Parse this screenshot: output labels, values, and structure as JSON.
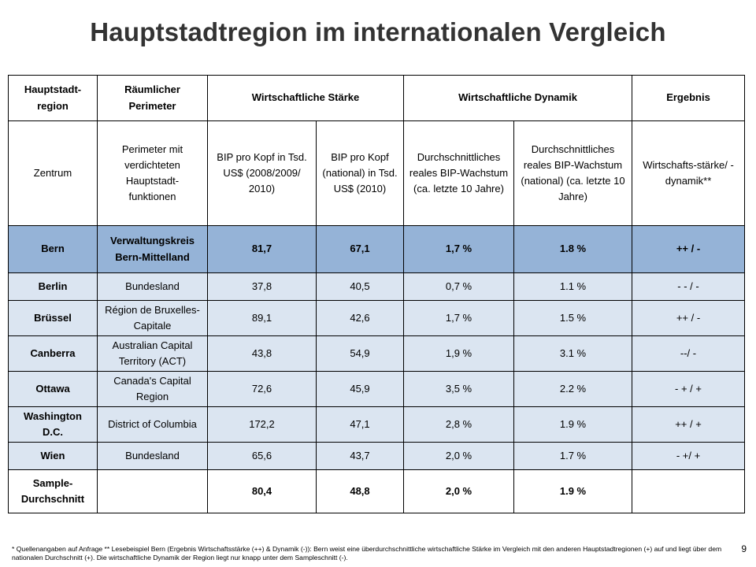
{
  "title": "Hauptstadtregion im internationalen Vergleich",
  "headers": {
    "region": "Hauptstadt-region",
    "perimeter": "Räumlicher Perimeter",
    "staerke": "Wirtschaftliche  Stärke",
    "dynamik": "Wirtschaftliche  Dynamik",
    "ergebnis": "Ergebnis"
  },
  "subheaders": {
    "zentrum": "Zentrum",
    "perimeter": "Perimeter mit verdichteten Hauptstadt-funktionen",
    "bip_kopf": "BIP pro Kopf in Tsd. US$ (2008/2009/ 2010)",
    "bip_national": "BIP pro Kopf (national) in Tsd. US$ (2010)",
    "wachstum": "Durchschnittliches reales BIP-Wachstum (ca. letzte 10 Jahre)",
    "wachstum_national": "Durchschnittliches reales BIP-Wachstum (national) (ca. letzte 10 Jahre)",
    "ergebnis": "Wirtschafts-stärke/ -dynamik**"
  },
  "rows": [
    {
      "region": "Bern",
      "perimeter": "Verwaltungskreis Bern-Mittelland",
      "bip": "81,7",
      "bip_nat": "67,1",
      "wachstum": "1,7 %",
      "wachstum_nat": "1.8 %",
      "ergebnis": "++ / -"
    },
    {
      "region": "Berlin",
      "perimeter": "Bundesland",
      "bip": "37,8",
      "bip_nat": "40,5",
      "wachstum": "0,7 %",
      "wachstum_nat": "1.1 %",
      "ergebnis": "- - / -"
    },
    {
      "region": "Brüssel",
      "perimeter": "Région de Bruxelles-Capitale",
      "bip": "89,1",
      "bip_nat": "42,6",
      "wachstum": "1,7 %",
      "wachstum_nat": "1.5 %",
      "ergebnis": "++ / -"
    },
    {
      "region": "Canberra",
      "perimeter": "Australian Capital Territory (ACT)",
      "bip": "43,8",
      "bip_nat": "54,9",
      "wachstum": "1,9 %",
      "wachstum_nat": "3.1 %",
      "ergebnis": "--/ -"
    },
    {
      "region": "Ottawa",
      "perimeter": "Canada's Capital Region",
      "bip": "72,6",
      "bip_nat": "45,9",
      "wachstum": "3,5 %",
      "wachstum_nat": "2.2 %",
      "ergebnis": "- + / +"
    },
    {
      "region": "Washington D.C.",
      "perimeter": "District of Columbia",
      "bip": "172,2",
      "bip_nat": "47,1",
      "wachstum": "2,8 %",
      "wachstum_nat": "1.9 %",
      "ergebnis": "++ / +"
    },
    {
      "region": "Wien",
      "perimeter": "Bundesland",
      "bip": "65,6",
      "bip_nat": "43,7",
      "wachstum": "2,0 %",
      "wachstum_nat": "1.7 %",
      "ergebnis": "- +/ +"
    },
    {
      "region": "Sample-Durchschnitt",
      "perimeter": "",
      "bip": "80,4",
      "bip_nat": "48,8",
      "wachstum": "2,0 %",
      "wachstum_nat": "1.9 %",
      "ergebnis": ""
    }
  ],
  "footnote": "* Quellenangaben auf Anfrage ** Lesebeispiel Bern (Ergebnis Wirtschaftsstärke (++) & Dynamik (-)): Bern weist eine überdurchschnittliche wirtschaftliche Stärke im Vergleich mit den anderen Hauptstadtregionen (+) auf und liegt über dem nationalen Durchschnitt (+). Die wirtschaftliche Dynamik der Region liegt nur knapp unter dem Sampleschnitt (-).",
  "page_number": "9",
  "colors": {
    "title": "#333333",
    "highlight_row": "#95b3d7",
    "row_bg": "#dbe5f1"
  }
}
